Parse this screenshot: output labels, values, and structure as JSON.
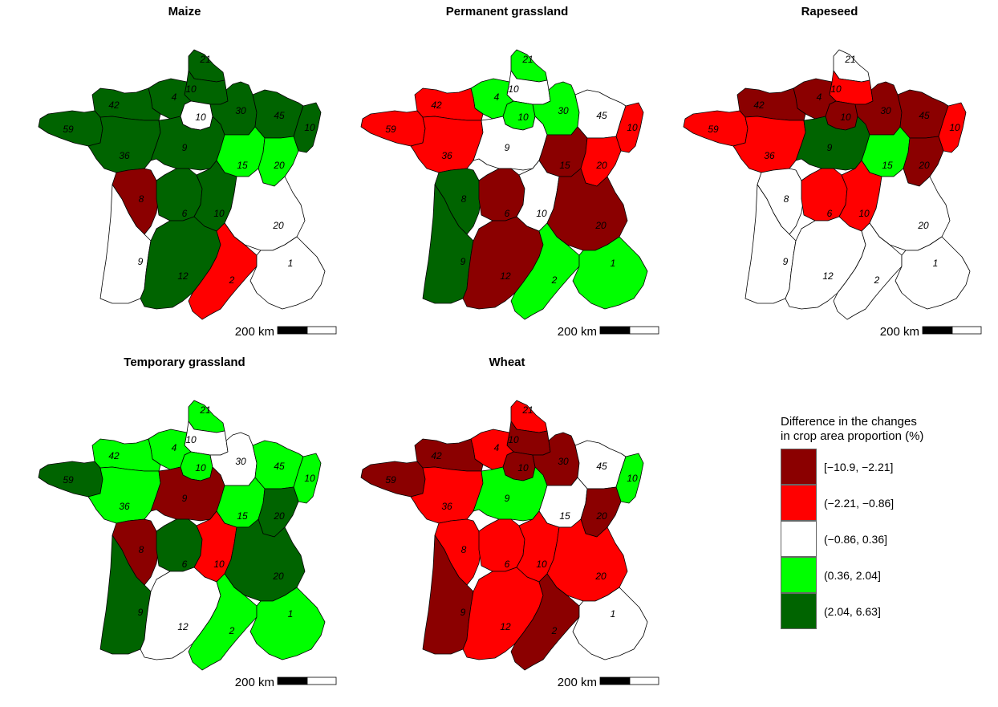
{
  "legend": {
    "title_line1": "Difference in the changes",
    "title_line2": "in crop area proportion (%)",
    "classes": [
      {
        "label": "[−10.9, −2.21]",
        "color": "#8B0000"
      },
      {
        "label": "(−2.21, −0.86]",
        "color": "#FF0000"
      },
      {
        "label": "(−0.86, 0.36]",
        "color": "#FFFFFF"
      },
      {
        "label": "(0.36, 2.04]",
        "color": "#00FF00"
      },
      {
        "label": "(2.04, 6.63]",
        "color": "#006400"
      }
    ]
  },
  "scale_label": "200 km",
  "region_keys": [
    "nord",
    "picardie",
    "haute-normandie",
    "ile-de-france",
    "champagne",
    "lorraine",
    "alsace",
    "basse-normandie",
    "bretagne",
    "pays-de-la-loire",
    "centre",
    "bourgogne",
    "franche-comte",
    "poitou",
    "limousin",
    "auvergne",
    "rhone-alpes",
    "aquitaine",
    "midi-pyrenees",
    "languedoc",
    "paca"
  ],
  "maps": [
    {
      "title": "Maize",
      "classes": {
        "nord": 4,
        "picardie": 4,
        "haute-normandie": 4,
        "ile-de-france": 2,
        "champagne": 4,
        "lorraine": 4,
        "alsace": 4,
        "basse-normandie": 4,
        "bretagne": 4,
        "pays-de-la-loire": 4,
        "centre": 4,
        "bourgogne": 3,
        "franche-comte": 3,
        "poitou": 0,
        "limousin": 4,
        "auvergne": 4,
        "rhone-alpes": 2,
        "aquitaine": 2,
        "midi-pyrenees": 4,
        "languedoc": 1,
        "paca": 2
      },
      "labels": {
        "nord": "21",
        "picardie": "10",
        "haute-normandie": "4",
        "ile-de-france": "10",
        "champagne": "30",
        "lorraine": "45",
        "alsace": "10",
        "basse-normandie": "42",
        "bretagne": "59",
        "pays-de-la-loire": "36",
        "centre": "9",
        "bourgogne": "15",
        "franche-comte": "20",
        "poitou": "8",
        "limousin": "6",
        "auvergne": "10",
        "rhone-alpes": "20",
        "aquitaine": "9",
        "midi-pyrenees": "12",
        "languedoc": "2",
        "paca": "1"
      }
    },
    {
      "title": "Permanent grassland",
      "classes": {
        "nord": 3,
        "picardie": 2,
        "haute-normandie": 3,
        "ile-de-france": 3,
        "champagne": 3,
        "lorraine": 2,
        "alsace": 1,
        "basse-normandie": 1,
        "bretagne": 1,
        "pays-de-la-loire": 1,
        "centre": 2,
        "bourgogne": 0,
        "franche-comte": 1,
        "poitou": 4,
        "limousin": 0,
        "auvergne": 2,
        "rhone-alpes": 0,
        "aquitaine": 4,
        "midi-pyrenees": 0,
        "languedoc": 3,
        "paca": 3
      },
      "labels": {
        "nord": "21",
        "picardie": "10",
        "haute-normandie": "4",
        "ile-de-france": "10",
        "champagne": "30",
        "lorraine": "45",
        "alsace": "10",
        "basse-normandie": "42",
        "bretagne": "59",
        "pays-de-la-loire": "36",
        "centre": "9",
        "bourgogne": "15",
        "franche-comte": "20",
        "poitou": "8",
        "limousin": "6",
        "auvergne": "10",
        "rhone-alpes": "20",
        "aquitaine": "9",
        "midi-pyrenees": "12",
        "languedoc": "2",
        "paca": "1"
      }
    },
    {
      "title": "Rapeseed",
      "classes": {
        "nord": 2,
        "picardie": 1,
        "haute-normandie": 0,
        "ile-de-france": 0,
        "champagne": 0,
        "lorraine": 0,
        "alsace": 1,
        "basse-normandie": 0,
        "bretagne": 1,
        "pays-de-la-loire": 1,
        "centre": 4,
        "bourgogne": 3,
        "franche-comte": 0,
        "poitou": 2,
        "limousin": 1,
        "auvergne": 1,
        "rhone-alpes": 2,
        "aquitaine": 2,
        "midi-pyrenees": 2,
        "languedoc": 2,
        "paca": 2
      },
      "labels": {
        "nord": "21",
        "picardie": "10",
        "haute-normandie": "4",
        "ile-de-france": "10",
        "champagne": "30",
        "lorraine": "45",
        "alsace": "10",
        "basse-normandie": "42",
        "bretagne": "59",
        "pays-de-la-loire": "36",
        "centre": "9",
        "bourgogne": "15",
        "franche-comte": "20",
        "poitou": "8",
        "limousin": "6",
        "auvergne": "10",
        "rhone-alpes": "20",
        "aquitaine": "9",
        "midi-pyrenees": "12",
        "languedoc": "2",
        "paca": "1"
      }
    },
    {
      "title": "Temporary grassland",
      "classes": {
        "nord": 3,
        "picardie": 2,
        "haute-normandie": 3,
        "ile-de-france": 3,
        "champagne": 2,
        "lorraine": 3,
        "alsace": 3,
        "basse-normandie": 3,
        "bretagne": 4,
        "pays-de-la-loire": 3,
        "centre": 0,
        "bourgogne": 3,
        "franche-comte": 4,
        "poitou": 0,
        "limousin": 4,
        "auvergne": 1,
        "rhone-alpes": 4,
        "aquitaine": 4,
        "midi-pyrenees": 2,
        "languedoc": 3,
        "paca": 3
      },
      "labels": {
        "nord": "21",
        "picardie": "10",
        "haute-normandie": "4",
        "ile-de-france": "10",
        "champagne": "30",
        "lorraine": "45",
        "alsace": "10",
        "basse-normandie": "42",
        "bretagne": "59",
        "pays-de-la-loire": "36",
        "centre": "9",
        "bourgogne": "15",
        "franche-comte": "20",
        "poitou": "8",
        "limousin": "6",
        "auvergne": "10",
        "rhone-alpes": "20",
        "aquitaine": "9",
        "midi-pyrenees": "12",
        "languedoc": "2",
        "paca": "1"
      }
    },
    {
      "title": "Wheat",
      "classes": {
        "nord": 1,
        "picardie": 0,
        "haute-normandie": 1,
        "ile-de-france": 0,
        "champagne": 0,
        "lorraine": 2,
        "alsace": 3,
        "basse-normandie": 0,
        "bretagne": 0,
        "pays-de-la-loire": 1,
        "centre": 3,
        "bourgogne": 2,
        "franche-comte": 0,
        "poitou": 1,
        "limousin": 1,
        "auvergne": 1,
        "rhone-alpes": 1,
        "aquitaine": 0,
        "midi-pyrenees": 1,
        "languedoc": 0,
        "paca": 2
      },
      "labels": {
        "nord": "21",
        "picardie": "10",
        "haute-normandie": "4",
        "ile-de-france": "10",
        "champagne": "30",
        "lorraine": "45",
        "alsace": "10",
        "basse-normandie": "42",
        "bretagne": "59",
        "pays-de-la-loire": "36",
        "centre": "9",
        "bourgogne": "15",
        "franche-comte": "20",
        "poitou": "8",
        "limousin": "6",
        "auvergne": "10",
        "rhone-alpes": "20",
        "aquitaine": "9",
        "midi-pyrenees": "12",
        "languedoc": "2",
        "paca": "1"
      }
    }
  ]
}
